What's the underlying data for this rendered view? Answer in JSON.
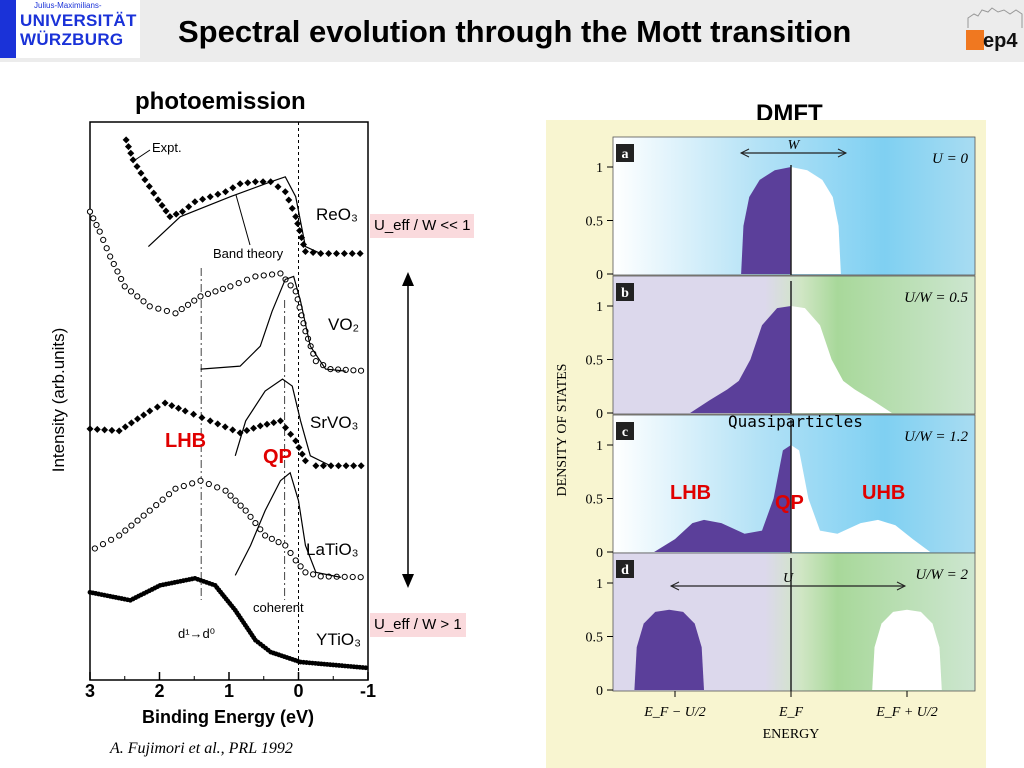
{
  "header": {
    "logo_small": "Julius-Maximilians-",
    "logo_line1": "UNIVERSITÄT",
    "logo_line2": "WÜRZBURG",
    "title": "Spectral evolution through the Mott transition",
    "right_logo": "ep4",
    "colors": {
      "logo_blue": "#1a32d8",
      "ep4_orange": "#f07820",
      "header_bg": "#ececec"
    }
  },
  "left": {
    "heading": "photoemission",
    "citation": "A. Fujimori et al., PRL 1992",
    "box_top": "U_eff / W << 1",
    "box_bottom": "U_eff / W > 1",
    "lhb_label": "LHB",
    "qp_label": "QP"
  },
  "right": {
    "heading": "DMFT",
    "quasiparticles": "Quasiparticles",
    "lhb_label": "LHB",
    "qp_label": "QP",
    "uhb_label": "UHB"
  },
  "chart_data": [
    {
      "type": "line",
      "xlabel": "Binding Energy (eV)",
      "ylabel": "Intensity (arb.units)",
      "xlim": [
        3,
        -1
      ],
      "xticks": [
        "3",
        "2",
        "1",
        "0",
        "-1"
      ],
      "ylim": [
        0,
        56
      ],
      "grid": false,
      "annotations": [
        "Expt.",
        "Band theory",
        "coherent",
        "d¹→d⁰"
      ],
      "samples": [
        {
          "label": "ReO₃",
          "series": [
            {
              "style": "filled-diamond",
              "points": [
                [
                  2.48,
                  54.2
                ],
                [
                  2.38,
                  52.2
                ],
                [
                  2.21,
                  50.2
                ],
                [
                  2.02,
                  48.2
                ],
                [
                  1.85,
                  46.5
                ],
                [
                  1.67,
                  47
                ],
                [
                  1.49,
                  48
                ],
                [
                  1.27,
                  48.5
                ],
                [
                  1.05,
                  49
                ],
                [
                  0.84,
                  49.8
                ],
                [
                  0.62,
                  50
                ],
                [
                  0.4,
                  50
                ],
                [
                  0.19,
                  49
                ],
                [
                  0.04,
                  46.5
                ],
                [
                  -0.1,
                  43
                ],
                [
                  -0.32,
                  42.8
                ],
                [
                  -1.0,
                  42.8
                ]
              ]
            },
            {
              "style": "line",
              "points": [
                [
                  2.16,
                  43.5
                ],
                [
                  1.7,
                  46.5
                ],
                [
                  0.98,
                  48.5
                ],
                [
                  0.4,
                  50
                ],
                [
                  0.19,
                  50.5
                ],
                [
                  0.04,
                  48.5
                ],
                [
                  -0.1,
                  43.5
                ],
                [
                  -0.32,
                  42.8
                ]
              ]
            }
          ]
        },
        {
          "label": "VO₂",
          "series": [
            {
              "style": "open-circle",
              "points": [
                [
                  3.0,
                  47
                ],
                [
                  2.86,
                  45
                ],
                [
                  2.71,
                  42.5
                ],
                [
                  2.5,
                  39.5
                ],
                [
                  2.14,
                  37.5
                ],
                [
                  1.77,
                  36.8
                ],
                [
                  1.41,
                  38.5
                ],
                [
                  0.98,
                  39.5
                ],
                [
                  0.62,
                  40.5
                ],
                [
                  0.26,
                  40.8
                ],
                [
                  0.04,
                  39
                ],
                [
                  -0.1,
                  35
                ],
                [
                  -0.25,
                  32
                ],
                [
                  -0.46,
                  31.2
                ],
                [
                  -1.01,
                  31
                ]
              ]
            },
            {
              "style": "line",
              "points": [
                [
                  1.41,
                  31.2
                ],
                [
                  0.84,
                  31.5
                ],
                [
                  0.55,
                  33.5
                ],
                [
                  0.38,
                  37
                ],
                [
                  0.19,
                  40.2
                ],
                [
                  0.07,
                  40.5
                ],
                [
                  -0.03,
                  38
                ],
                [
                  -0.17,
                  33.5
                ],
                [
                  -0.39,
                  31.2
                ],
                [
                  -0.68,
                  31
                ]
              ]
            }
          ]
        },
        {
          "label": "SrVO₃",
          "series": [
            {
              "style": "filled-diamond",
              "points": [
                [
                  3.0,
                  25.2
                ],
                [
                  2.58,
                  25
                ],
                [
                  2.14,
                  27
                ],
                [
                  1.92,
                  27.8
                ],
                [
                  1.63,
                  27
                ],
                [
                  1.27,
                  26
                ],
                [
                  0.84,
                  24.8
                ],
                [
                  0.55,
                  25.5
                ],
                [
                  0.26,
                  26
                ],
                [
                  0.04,
                  24
                ],
                [
                  -0.1,
                  22
                ],
                [
                  -0.25,
                  21.5
                ],
                [
                  -1.01,
                  21.5
                ]
              ]
            },
            {
              "style": "line",
              "points": [
                [
                  0.91,
                  22.5
                ],
                [
                  0.76,
                  26
                ],
                [
                  0.48,
                  29
                ],
                [
                  0.23,
                  30.2
                ],
                [
                  0.09,
                  29.5
                ],
                [
                  -0.03,
                  26
                ],
                [
                  -0.17,
                  22.5
                ],
                [
                  -0.46,
                  21.5
                ]
              ]
            }
          ]
        },
        {
          "label": "LaTiO₃",
          "series": [
            {
              "style": "open-circle",
              "points": [
                [
                  2.93,
                  13.2
                ],
                [
                  2.58,
                  14.5
                ],
                [
                  2.14,
                  17
                ],
                [
                  1.77,
                  19.2
                ],
                [
                  1.41,
                  20
                ],
                [
                  1.05,
                  19
                ],
                [
                  0.76,
                  17
                ],
                [
                  0.48,
                  14.5
                ],
                [
                  0.19,
                  13.5
                ],
                [
                  0.04,
                  12
                ],
                [
                  -0.1,
                  10.8
                ],
                [
                  -0.32,
                  10.4
                ],
                [
                  -1.01,
                  10.3
                ]
              ]
            },
            {
              "style": "line",
              "points": [
                [
                  0.91,
                  10.5
                ],
                [
                  0.69,
                  13.5
                ],
                [
                  0.48,
                  17
                ],
                [
                  0.26,
                  20
                ],
                [
                  0.12,
                  20.8
                ],
                [
                  0,
                  18
                ],
                [
                  -0.1,
                  13.5
                ],
                [
                  -0.25,
                  10.8
                ],
                [
                  -0.61,
                  10.3
                ]
              ]
            }
          ]
        },
        {
          "label": "YTiO₃",
          "series": [
            {
              "style": "filled-dot",
              "points": [
                [
                  3.0,
                  8.8
                ],
                [
                  2.42,
                  8
                ],
                [
                  1.99,
                  9.5
                ],
                [
                  1.49,
                  10.2
                ],
                [
                  1.2,
                  9.5
                ],
                [
                  0.91,
                  7
                ],
                [
                  0.62,
                  4
                ],
                [
                  0.4,
                  2.8
                ],
                [
                  -0.03,
                  1.8
                ],
                [
                  -1.01,
                  1.2
                ]
              ]
            }
          ]
        }
      ]
    },
    {
      "type": "area",
      "xlabel": "ENERGY",
      "ylabel": "DENSITY OF STATES",
      "xticks": [
        "E_F − U/2",
        "E_F",
        "E_F + U/2"
      ],
      "xlim": [
        -1.55,
        1.6
      ],
      "ylim": [
        0,
        1.25
      ],
      "yticks": [
        "0",
        "0.5",
        "1"
      ],
      "colors": {
        "occupied": "#5b3f9a",
        "unoccupied": "#ffffff",
        "blue": "#7fd0f2",
        "lavender": "#dcd8ec",
        "green": "#a8d89a",
        "frame": "#f8f5d0"
      },
      "panels": [
        {
          "tag": "a",
          "label": "U = 0",
          "bg": "blue",
          "width_label": "W",
          "points": [
            [
              -0.43,
              0
            ],
            [
              -0.41,
              0.45
            ],
            [
              -0.36,
              0.72
            ],
            [
              -0.27,
              0.88
            ],
            [
              -0.14,
              0.97
            ],
            [
              0,
              1.0
            ],
            [
              0.14,
              0.97
            ],
            [
              0.27,
              0.88
            ],
            [
              0.36,
              0.72
            ],
            [
              0.41,
              0.45
            ],
            [
              0.43,
              0
            ]
          ]
        },
        {
          "tag": "b",
          "label": "U/W = 0.5",
          "bg": "split",
          "points": [
            [
              -0.87,
              0
            ],
            [
              -0.7,
              0.12
            ],
            [
              -0.55,
              0.22
            ],
            [
              -0.45,
              0.3
            ],
            [
              -0.35,
              0.5
            ],
            [
              -0.25,
              0.82
            ],
            [
              -0.12,
              0.98
            ],
            [
              0,
              1.0
            ],
            [
              0.12,
              0.98
            ],
            [
              0.25,
              0.82
            ],
            [
              0.35,
              0.5
            ],
            [
              0.45,
              0.3
            ],
            [
              0.55,
              0.22
            ],
            [
              0.7,
              0.12
            ],
            [
              0.87,
              0
            ]
          ]
        },
        {
          "tag": "c",
          "label": "U/W = 1.2",
          "bg": "blue",
          "points": [
            [
              -1.18,
              0
            ],
            [
              -1.0,
              0.12
            ],
            [
              -0.85,
              0.27
            ],
            [
              -0.75,
              0.3
            ],
            [
              -0.6,
              0.27
            ],
            [
              -0.4,
              0.17
            ],
            [
              -0.25,
              0.2
            ],
            [
              -0.15,
              0.5
            ],
            [
              -0.07,
              0.95
            ],
            [
              0,
              1.0
            ],
            [
              0.07,
              0.95
            ],
            [
              0.15,
              0.5
            ],
            [
              0.25,
              0.2
            ],
            [
              0.4,
              0.17
            ],
            [
              0.6,
              0.27
            ],
            [
              0.75,
              0.3
            ],
            [
              0.9,
              0.25
            ],
            [
              1.05,
              0.12
            ],
            [
              1.2,
              0
            ]
          ]
        },
        {
          "tag": "d",
          "label": "U/W = 2",
          "bg": "split",
          "width_label": "U",
          "points": [
            [
              -1.35,
              0
            ],
            [
              -1.33,
              0.4
            ],
            [
              -1.27,
              0.62
            ],
            [
              -1.17,
              0.73
            ],
            [
              -1.05,
              0.75
            ],
            [
              -0.93,
              0.73
            ],
            [
              -0.83,
              0.62
            ],
            [
              -0.77,
              0.4
            ],
            [
              -0.75,
              0
            ],
            [
              0.7,
              0
            ],
            [
              0.72,
              0.4
            ],
            [
              0.78,
              0.62
            ],
            [
              0.88,
              0.73
            ],
            [
              1.0,
              0.75
            ],
            [
              1.12,
              0.73
            ],
            [
              1.22,
              0.62
            ],
            [
              1.28,
              0.4
            ],
            [
              1.3,
              0
            ]
          ]
        }
      ]
    }
  ]
}
